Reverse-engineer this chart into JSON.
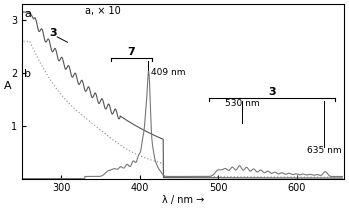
{
  "xlim": [
    250,
    660
  ],
  "ylim": [
    0,
    3.3
  ],
  "xlabel": "λ / nm →",
  "ylabel": "A",
  "yticks": [
    1.0,
    2.0,
    3.0
  ],
  "xticks": [
    300,
    400,
    500,
    600
  ],
  "background_color": "#ffffff",
  "label_a": "a",
  "label_b": "b",
  "label_ax10": "a, × 10",
  "annotation_7": "7",
  "annotation_3_right": "3",
  "annotation_409": "409 nm",
  "annotation_530": "530 nm",
  "annotation_635": "635 nm",
  "color_solid": "#555555",
  "color_ax10": "#777777",
  "color_dotted": "#888888"
}
